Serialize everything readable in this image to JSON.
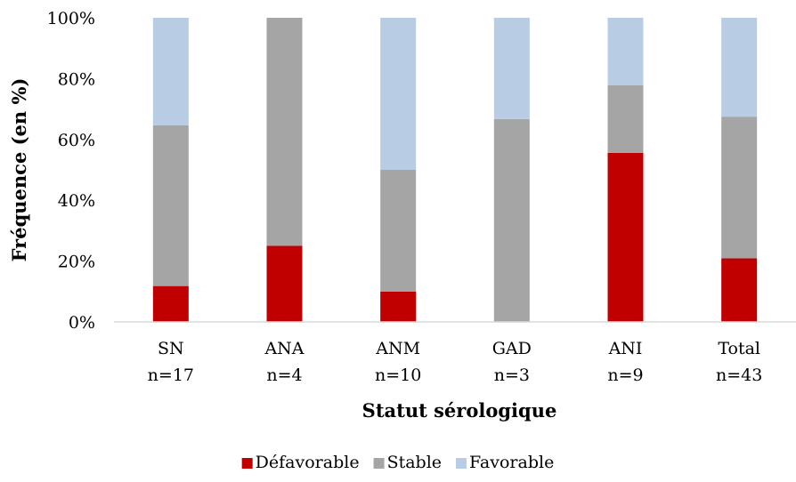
{
  "chart_data": {
    "type": "bar",
    "stacked": true,
    "categories": [
      {
        "label": "SN",
        "n": "n=17"
      },
      {
        "label": "ANA",
        "n": "n=4"
      },
      {
        "label": "ANM",
        "n": "n=10"
      },
      {
        "label": "GAD",
        "n": "n=3"
      },
      {
        "label": "ANI",
        "n": "n=9"
      },
      {
        "label": "Total",
        "n": "n=43"
      }
    ],
    "series": [
      {
        "name": "Défavorable",
        "color": "#c00000",
        "values": [
          11.8,
          25,
          10,
          0,
          55.6,
          20.9
        ]
      },
      {
        "name": "Stable",
        "color": "#a5a5a5",
        "values": [
          52.9,
          75,
          40,
          66.7,
          22.2,
          46.5
        ]
      },
      {
        "name": "Favorable",
        "color": "#b8cce4",
        "values": [
          35.3,
          0,
          50,
          33.3,
          22.2,
          32.6
        ]
      }
    ],
    "xlabel": "Statut sérologique",
    "ylabel": "Fréquence (en %)",
    "ylim": [
      0,
      100
    ],
    "yticks": [
      "0%",
      "20%",
      "40%",
      "60%",
      "80%",
      "100%"
    ],
    "grid": false,
    "legend_position": "bottom"
  }
}
